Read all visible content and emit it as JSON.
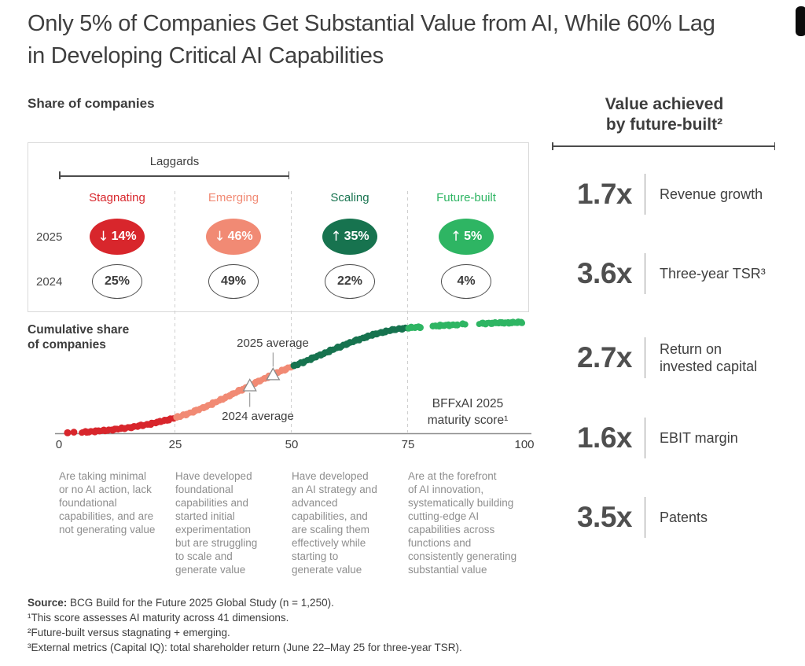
{
  "page": {
    "title_line1": "Only 5% of Companies Get Substantial Value from AI, While 60% Lag",
    "title_line2": "in Developing Critical AI Capabilities"
  },
  "left_panel": {
    "heading": "Share of companies",
    "group_bracket_label": "Laggards",
    "row_labels": [
      "2025",
      "2024"
    ],
    "cumulative_axis_label": "Cumulative share\nof companies"
  },
  "chart_data": {
    "type": "scatter",
    "title": "Share of companies",
    "xlabel": "BFFxAI 2025 maturity score¹",
    "xlabel_line1": "BFFxAI 2025",
    "xlabel_line2": "maturity score¹",
    "ylabel": "Cumulative share of companies",
    "xlim": [
      0,
      100
    ],
    "x_ticks": [
      "0",
      "25",
      "50",
      "75",
      "100"
    ],
    "grid": "dashed vertical lines at 25, 50, 75",
    "legend_position": "none",
    "cumulative_control_points": [
      [
        0,
        0
      ],
      [
        25,
        14
      ],
      [
        50,
        60
      ],
      [
        75,
        95
      ],
      [
        100,
        100
      ]
    ],
    "segments": [
      {
        "name": "Stagnating",
        "range": [
          0,
          25
        ],
        "color": "#d8262c",
        "share_2025": 14,
        "share_2025_label": "14%",
        "trend_2025": "down",
        "arrow_char": "↓",
        "share_2024": 25,
        "share_2024_label": "25%",
        "description": "Are taking minimal\nor no AI action, lack\nfoundational\ncapabilities, and are\nnot generating value"
      },
      {
        "name": "Emerging",
        "range": [
          25,
          50
        ],
        "color": "#f18a74",
        "share_2025": 46,
        "share_2025_label": "46%",
        "trend_2025": "down",
        "arrow_char": "↓",
        "share_2024": 49,
        "share_2024_label": "49%",
        "description": "Have developed\nfoundational\ncapabilities and\nstarted initial\nexperimentation\nbut are struggling\nto scale and\ngenerate value"
      },
      {
        "name": "Scaling",
        "range": [
          50,
          75
        ],
        "color": "#17734f",
        "share_2025": 35,
        "share_2025_label": "35%",
        "trend_2025": "up",
        "arrow_char": "↑",
        "share_2024": 22,
        "share_2024_label": "22%",
        "description": "Have developed\nan AI strategy and\nadvanced\ncapabilities, and\nare scaling them\neffectively while\nstarting to\ngenerate value"
      },
      {
        "name": "Future-built",
        "range": [
          75,
          100
        ],
        "color": "#2eb563",
        "share_2025": 5,
        "share_2025_label": "5%",
        "trend_2025": "up",
        "arrow_char": "↑",
        "share_2024": 4,
        "share_2024_label": "4%",
        "description": "Are at the forefront\nof AI innovation,\nsystematically building\ncutting-edge AI\ncapabilities across\nfunctions and\nconsistently generating\nsubstantial value"
      }
    ],
    "markers": [
      {
        "label": "2024 average",
        "x": 41,
        "leader": "down"
      },
      {
        "label": "2025 average",
        "x": 46,
        "leader": "up"
      }
    ],
    "dot_style": {
      "radius": 4.2,
      "start": 4.8,
      "step": 0.4,
      "lead_dots": [
        1.8,
        3.3
      ],
      "gaps": [
        [
          77.9,
          80.1
        ],
        [
          85.9,
          86.7
        ],
        [
          87.4,
          90.2
        ]
      ]
    }
  },
  "right_panel": {
    "heading_line1": "Value achieved",
    "heading_line2": "by future-built²",
    "metrics": [
      {
        "value": "1.7x",
        "label": "Revenue growth"
      },
      {
        "value": "3.6x",
        "label": "Three-year TSR³"
      },
      {
        "value": "2.7x",
        "label": "Return on\ninvested capital"
      },
      {
        "value": "1.6x",
        "label": "EBIT margin"
      },
      {
        "value": "3.5x",
        "label": "Patents"
      }
    ]
  },
  "footnotes": {
    "source_label": "Source:",
    "source_text": " BCG Build for the Future 2025 Global Study (n = 1,250).",
    "notes": [
      "¹This score assesses AI maturity across 41 dimensions.",
      "²Future-built versus stagnating + emerging.",
      "³External metrics (Capital IQ): total shareholder return (June 22–May 25 for three-year TSR)."
    ]
  },
  "colors": {
    "stagnating": "#d8262c",
    "emerging": "#f18a74",
    "scaling": "#17734f",
    "future_built": "#2eb563",
    "text_dark": "#3d3d3d",
    "text_gray": "#8e8e8e",
    "axis": "#8f8f8f",
    "dashed_line": "#cfcfcf",
    "box_border": "#d9d9d9",
    "metric_number": "#4f4f4f",
    "scrollbar": "#0c0c0c"
  }
}
